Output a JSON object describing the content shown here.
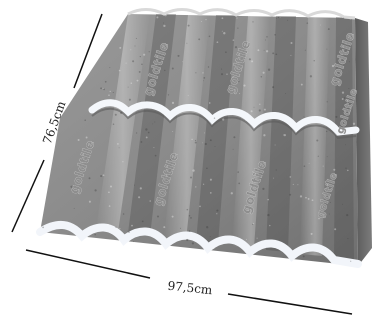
{
  "product": {
    "brand_marks": [
      "goldtile",
      "goldtile",
      "goldtile",
      "goldtile",
      "goldtile",
      "goldtile",
      "goldtile",
      "goldtile"
    ],
    "base_color": "#8c8c8c",
    "highlight_color": "#e9eef5"
  },
  "dimensions": {
    "height_label": "76,5cm",
    "width_label": "97,5cm"
  }
}
